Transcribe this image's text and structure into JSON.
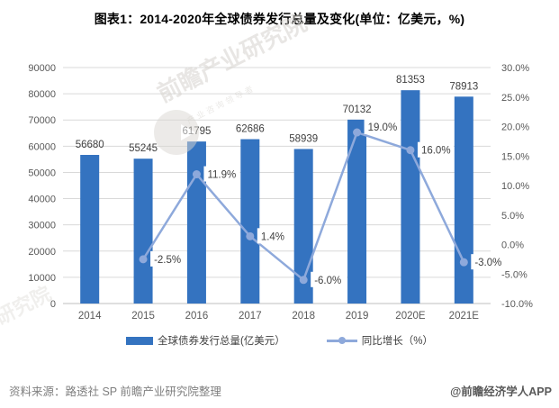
{
  "header": {
    "title": "图表1：2014-2020年全球债券发行总量及变化(单位：亿美元，%)"
  },
  "chart_data": {
    "type": "bar",
    "subtype": "bar+line-dual-axis",
    "categories": [
      "2014",
      "2015",
      "2016",
      "2017",
      "2018",
      "2019",
      "2020E",
      "2021E"
    ],
    "series": [
      {
        "name": "全球债券发行总量(亿美元）",
        "type": "bar",
        "axis": "left",
        "values": [
          56680,
          55245,
          61795,
          62686,
          58939,
          70132,
          81353,
          78913
        ],
        "value_labels": [
          "56680",
          "55245",
          "61795",
          "62686",
          "58939",
          "70132",
          "81353",
          "78913"
        ]
      },
      {
        "name": "同比增长（%）",
        "type": "line",
        "axis": "right",
        "values": [
          null,
          -2.5,
          11.9,
          1.4,
          -6.0,
          19.0,
          16.0,
          -3.0
        ],
        "value_labels": [
          null,
          "-2.5%",
          "11.9%",
          "1.4%",
          "-6.0%",
          "19.0%",
          "16.0%",
          "-3.0%"
        ]
      }
    ],
    "left_axis": {
      "min": 0,
      "max": 90000,
      "step": 10000,
      "labels": [
        "90000",
        "80000",
        "70000",
        "60000",
        "50000",
        "40000",
        "30000",
        "20000",
        "10000",
        "0"
      ]
    },
    "right_axis": {
      "min": -10,
      "max": 30,
      "step": 5,
      "labels": [
        "30.0%",
        "25.0%",
        "20.0%",
        "15.0%",
        "10.0%",
        "5.0%",
        "0.0%",
        "-5.0%",
        "-10.0%"
      ]
    },
    "grid": true,
    "legend_position": "bottom"
  },
  "colors": {
    "bar": "#3473c0",
    "line": "#8ea9db",
    "grid": "#d9d9d9",
    "axis_line": "#bfbfbf",
    "axis_text": "#595959",
    "label_text": "#404040",
    "title_text": "#000000"
  },
  "footer": {
    "source": "资料来源：路透社 SP 前瞻产业研究院整理",
    "credit": "@前瞻经济学人APP"
  },
  "watermark": {
    "brand": "前瞻产业研究院",
    "subtext": "产业咨询领导者",
    "partial": "研究院"
  }
}
